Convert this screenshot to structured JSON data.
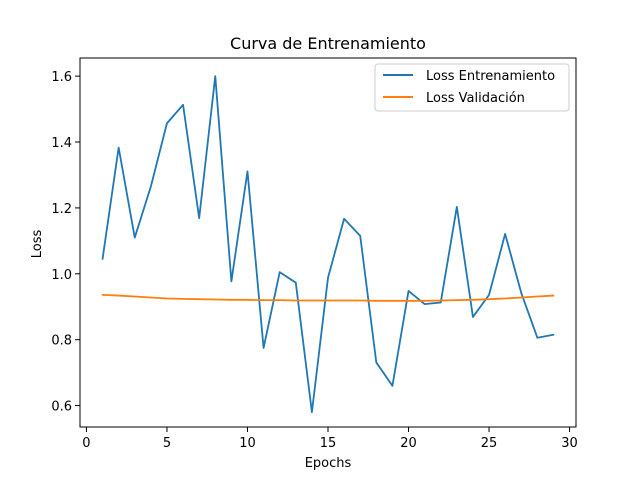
{
  "chart_data": {
    "type": "line",
    "title": "Curva de Entrenamiento",
    "xlabel": "Epochs",
    "ylabel": "Loss",
    "xlim": [
      -0.4,
      30.4
    ],
    "ylim": [
      0.535,
      1.655
    ],
    "xticks": [
      0,
      5,
      10,
      15,
      20,
      25,
      30
    ],
    "yticks": [
      0.6,
      0.8,
      1.0,
      1.2,
      1.4,
      1.6
    ],
    "ytick_labels": [
      "0.6",
      "0.8",
      "1.0",
      "1.2",
      "1.4",
      "1.6"
    ],
    "grid": false,
    "legend_position": "top-right",
    "x": [
      1,
      2,
      3,
      4,
      5,
      6,
      7,
      8,
      9,
      10,
      11,
      12,
      13,
      14,
      15,
      16,
      17,
      18,
      19,
      20,
      21,
      22,
      23,
      24,
      25,
      26,
      27,
      28,
      29
    ],
    "series": [
      {
        "name": "Loss Entrenamiento",
        "color": "#1f77b4",
        "values": [
          1.045,
          1.383,
          1.11,
          1.265,
          1.457,
          1.513,
          1.169,
          1.6,
          0.977,
          1.311,
          0.775,
          1.005,
          0.973,
          0.58,
          0.988,
          1.167,
          1.115,
          0.731,
          0.66,
          0.948,
          0.908,
          0.913,
          1.203,
          0.869,
          0.936,
          1.121,
          0.942,
          0.806,
          0.815
        ]
      },
      {
        "name": "Loss Validación",
        "color": "#ff7f0e",
        "values": [
          0.936,
          0.934,
          0.931,
          0.928,
          0.925,
          0.924,
          0.923,
          0.922,
          0.921,
          0.921,
          0.92,
          0.92,
          0.919,
          0.919,
          0.919,
          0.919,
          0.919,
          0.918,
          0.918,
          0.918,
          0.918,
          0.919,
          0.92,
          0.921,
          0.923,
          0.925,
          0.928,
          0.931,
          0.934
        ]
      }
    ]
  }
}
